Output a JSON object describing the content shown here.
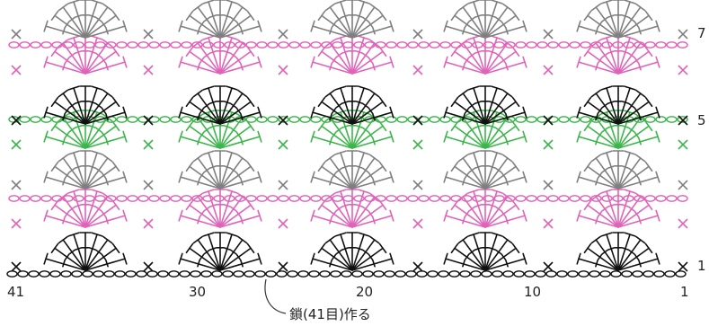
{
  "diagram": {
    "type": "crochet-chart",
    "pattern": "fan-stitch",
    "row_numbers": [
      "1",
      "5",
      "7"
    ],
    "stitch_numbers": [
      "41",
      "30",
      "20",
      "10",
      "1"
    ],
    "foundation_caption": "鎖(41目)作る",
    "fans_per_row": 5,
    "rows": [
      {
        "kind": "fan",
        "color": "#111111"
      },
      {
        "kind": "fan",
        "color": "#e063b8"
      },
      {
        "kind": "fan",
        "color": "#7f7f7f"
      },
      {
        "kind": "fan",
        "color": "#3cb54a"
      },
      {
        "kind": "fan",
        "color": "#111111"
      },
      {
        "kind": "fan",
        "color": "#e063b8"
      },
      {
        "kind": "fan",
        "color": "#7f7f7f"
      }
    ],
    "colors": {
      "black": "#111111",
      "pink": "#e063b8",
      "gray": "#7f7f7f",
      "green": "#3cb54a",
      "foundation": "#111111"
    }
  }
}
